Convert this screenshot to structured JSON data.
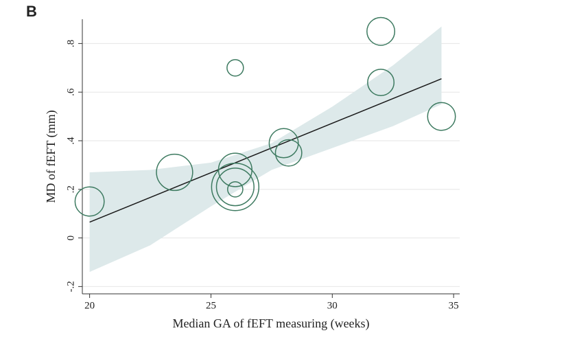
{
  "chart_data": {
    "type": "scatter",
    "panel_label": "B",
    "xlabel": "Median GA of fEFT measuring (weeks)",
    "ylabel": "MD of fEFT (mm)",
    "x": [
      20,
      23.5,
      26,
      26,
      26,
      26,
      26,
      28,
      28.2,
      32,
      32,
      34.5
    ],
    "y": [
      0.15,
      0.27,
      0.7,
      0.28,
      0.21,
      0.21,
      0.2,
      0.39,
      0.35,
      0.85,
      0.64,
      0.5
    ],
    "sizes": [
      44,
      68,
      14,
      58,
      116,
      73,
      12,
      44,
      36,
      40,
      36,
      40
    ],
    "color": "#3d7a60",
    "fit": {
      "x": [
        20,
        34.5
      ],
      "y": [
        0.065,
        0.655
      ],
      "color": "#1a1a1a"
    },
    "ci": {
      "x": [
        20,
        22.5,
        25,
        27.5,
        30,
        32.5,
        34.5
      ],
      "lower": [
        -0.14,
        -0.03,
        0.13,
        0.28,
        0.37,
        0.46,
        0.55
      ],
      "upper": [
        0.27,
        0.28,
        0.31,
        0.39,
        0.54,
        0.71,
        0.87
      ],
      "color": "#dde9ea"
    },
    "xlim": [
      19.7,
      35.25
    ],
    "ylim": [
      -0.23,
      0.9
    ],
    "xticks": [
      20,
      25,
      30,
      35
    ],
    "yticks": [
      {
        "value": -0.2,
        "label": "-.2"
      },
      0,
      {
        "value": 0.2,
        "label": ".2"
      },
      {
        "value": 0.4,
        "label": ".4"
      },
      {
        "value": 0.6,
        "label": ".6"
      },
      {
        "value": 0.8,
        "label": ".8"
      }
    ],
    "grid": true
  }
}
